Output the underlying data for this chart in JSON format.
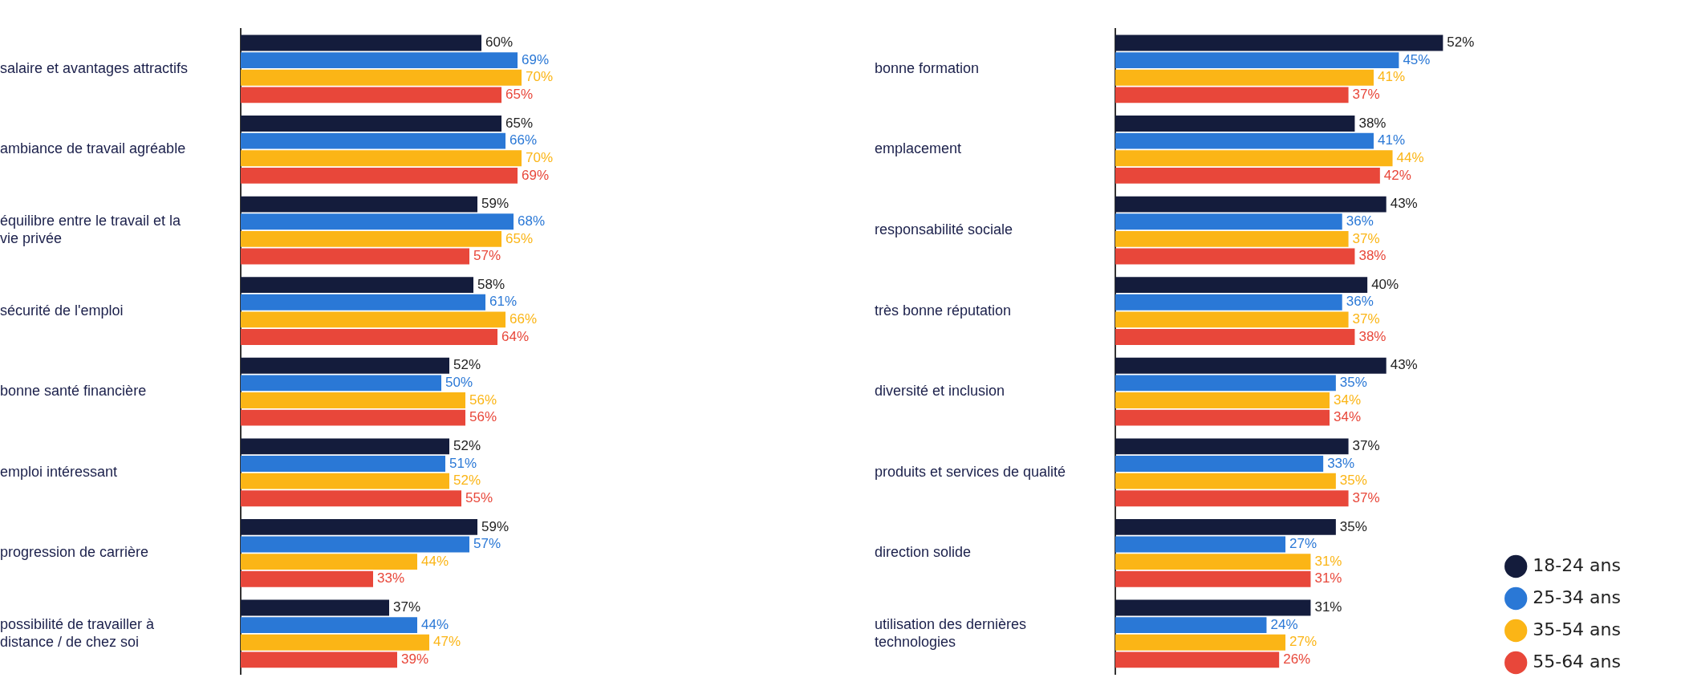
{
  "chart_data": [
    {
      "type": "bar",
      "orientation": "horizontal",
      "categories": [
        "salaire et avantages attractifs",
        "ambiance de travail agréable",
        "équilibre entre le travail et la vie privée",
        "sécurité de l'emploi",
        "bonne santé financière",
        "emploi intéressant",
        "progression de carrière",
        "possibilité de travailler à distance / de chez soi"
      ],
      "series": [
        {
          "color": "#141c3c",
          "values": [
            60,
            65,
            59,
            58,
            52,
            52,
            59,
            37
          ],
          "value_labels": [
            "60%",
            "65%",
            "59%",
            "58%",
            "52%",
            "52%",
            "59%",
            "37%"
          ]
        },
        {
          "color": "#2a78d6",
          "values": [
            69,
            66,
            68,
            61,
            50,
            51,
            57,
            44
          ],
          "value_labels": [
            "69%",
            "66%",
            "68%",
            "61%",
            "50%",
            "51%",
            "57%",
            "44%"
          ]
        },
        {
          "color": "#fbb516",
          "values": [
            70,
            70,
            65,
            66,
            56,
            52,
            44,
            47
          ],
          "value_labels": [
            "70%",
            "70%",
            "65%",
            "66%",
            "56%",
            "52%",
            "44%",
            "47%"
          ]
        },
        {
          "color": "#e8473a",
          "values": [
            65,
            69,
            57,
            64,
            56,
            55,
            33,
            39
          ],
          "value_labels": [
            "65%",
            "69%",
            "57%",
            "64%",
            "56%",
            "55%",
            "33%",
            "39%"
          ]
        }
      ],
      "tick_labels": "y",
      "grid": false
    },
    {
      "type": "bar",
      "orientation": "horizontal",
      "categories": [
        "bonne formation",
        "emplacement",
        "responsabilité sociale",
        "très bonne réputation",
        "diversité et inclusion",
        "produits et services de qualité",
        "direction solide",
        "utilisation des dernières technologies"
      ],
      "series": [
        {
          "name": "18-24 ans",
          "color": "#141c3c",
          "values": [
            52,
            38,
            43,
            40,
            43,
            37,
            35,
            31
          ],
          "value_labels": [
            "52%",
            "38%",
            "43%",
            "40%",
            "43%",
            "37%",
            "35%",
            "31%"
          ]
        },
        {
          "name": "25-34 ans",
          "color": "#2a78d6",
          "values": [
            45,
            41,
            36,
            36,
            35,
            33,
            27,
            24
          ],
          "value_labels": [
            "45%",
            "41%",
            "36%",
            "36%",
            "35%",
            "33%",
            "27%",
            "24%"
          ]
        },
        {
          "name": "35-54 ans",
          "color": "#fbb516",
          "values": [
            41,
            44,
            37,
            37,
            34,
            35,
            31,
            27
          ],
          "value_labels": [
            "41%",
            "44%",
            "37%",
            "37%",
            "34%",
            "35%",
            "31%",
            "27%"
          ]
        },
        {
          "name": "55-64 ans",
          "color": "#e8473a",
          "values": [
            37,
            42,
            38,
            38,
            34,
            37,
            31,
            26
          ],
          "value_labels": [
            "37%",
            "42%",
            "38%",
            "38%",
            "34%",
            "37%",
            "31%",
            "26%"
          ]
        }
      ],
      "tick_labels": "y",
      "grid": false,
      "legend": "bottom right"
    }
  ]
}
